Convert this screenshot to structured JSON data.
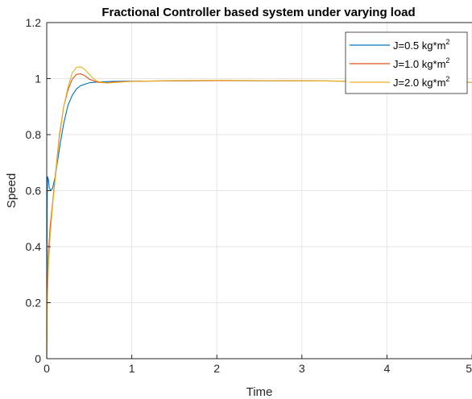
{
  "chart_data": {
    "type": "line",
    "title": "Fractional Controller based system under varying load",
    "xlabel": "Time",
    "ylabel": "Speed",
    "xlim": [
      0,
      5
    ],
    "ylim": [
      0,
      1.2
    ],
    "xticks": [
      0,
      1,
      2,
      3,
      4,
      5
    ],
    "xtick_labels": [
      "0",
      "1",
      "2",
      "3",
      "4",
      "5"
    ],
    "yticks": [
      0,
      0.2,
      0.4,
      0.6,
      0.8,
      1.0,
      1.2
    ],
    "ytick_labels": [
      "0",
      "0.2",
      "0.4",
      "0.6",
      "0.8",
      "1",
      "1.2"
    ],
    "grid": true,
    "legend_position": "top-right",
    "series": [
      {
        "name": "J=0.5 kg*m",
        "name_sup": "2",
        "color": "#0072BD",
        "x": [
          0,
          0.005,
          0.01,
          0.02,
          0.03,
          0.05,
          0.07,
          0.1,
          0.13,
          0.16,
          0.2,
          0.25,
          0.3,
          0.35,
          0.4,
          0.5,
          0.6,
          0.7,
          0.8,
          1.0,
          1.5,
          2.0,
          3.0,
          4.0,
          5.0
        ],
        "y": [
          0,
          0.55,
          0.65,
          0.64,
          0.61,
          0.6,
          0.61,
          0.65,
          0.71,
          0.77,
          0.84,
          0.905,
          0.94,
          0.963,
          0.975,
          0.985,
          0.988,
          0.989,
          0.99,
          0.991,
          0.992,
          0.993,
          0.992,
          0.99,
          0.987
        ]
      },
      {
        "name": "J=1.0 kg*m",
        "name_sup": "2",
        "color": "#D95319",
        "x": [
          0,
          0.005,
          0.01,
          0.02,
          0.04,
          0.07,
          0.1,
          0.15,
          0.2,
          0.25,
          0.3,
          0.35,
          0.4,
          0.45,
          0.5,
          0.6,
          0.7,
          0.8,
          1.0,
          1.5,
          2.0,
          3.0,
          4.0,
          5.0
        ],
        "y": [
          0,
          0.2,
          0.29,
          0.38,
          0.47,
          0.56,
          0.65,
          0.8,
          0.9,
          0.96,
          0.998,
          1.015,
          1.017,
          1.01,
          0.998,
          0.987,
          0.985,
          0.988,
          0.99,
          0.992,
          0.993,
          0.992,
          0.99,
          0.987
        ]
      },
      {
        "name": "J=2.0 kg*m",
        "name_sup": "2",
        "color": "#EDB120",
        "x": [
          0,
          0.005,
          0.01,
          0.02,
          0.04,
          0.07,
          0.1,
          0.15,
          0.2,
          0.25,
          0.3,
          0.35,
          0.4,
          0.45,
          0.5,
          0.55,
          0.6,
          0.7,
          0.8,
          1.0,
          1.5,
          2.0,
          3.0,
          4.0,
          5.0
        ],
        "y": [
          0,
          0.15,
          0.23,
          0.33,
          0.44,
          0.55,
          0.64,
          0.79,
          0.9,
          0.97,
          1.02,
          1.04,
          1.042,
          1.032,
          1.015,
          1.0,
          0.99,
          0.984,
          0.986,
          0.99,
          0.993,
          0.994,
          0.992,
          0.99,
          0.987
        ]
      }
    ]
  },
  "colors": {
    "axis": "#262626",
    "grid": "#e6e6e6",
    "background": "#ffffff"
  }
}
